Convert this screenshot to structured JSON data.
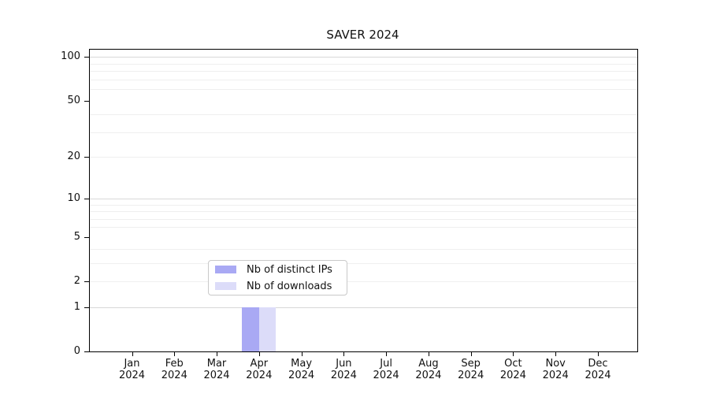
{
  "title": "SAVER 2024",
  "chart_data": {
    "type": "bar",
    "title": "SAVER 2024",
    "x_ticks": [
      {
        "month": "Jan",
        "year": "2024"
      },
      {
        "month": "Feb",
        "year": "2024"
      },
      {
        "month": "Mar",
        "year": "2024"
      },
      {
        "month": "Apr",
        "year": "2024"
      },
      {
        "month": "May",
        "year": "2024"
      },
      {
        "month": "Jun",
        "year": "2024"
      },
      {
        "month": "Jul",
        "year": "2024"
      },
      {
        "month": "Aug",
        "year": "2024"
      },
      {
        "month": "Sep",
        "year": "2024"
      },
      {
        "month": "Oct",
        "year": "2024"
      },
      {
        "month": "Nov",
        "year": "2024"
      },
      {
        "month": "Dec",
        "year": "2024"
      }
    ],
    "series": [
      {
        "name": "Nb of distinct IPs",
        "color": "#a9a9f4",
        "values": [
          0,
          0,
          0,
          1,
          0,
          0,
          0,
          0,
          0,
          0,
          0,
          0
        ]
      },
      {
        "name": "Nb of downloads",
        "color": "#dcdcf9",
        "values": [
          0,
          0,
          0,
          1,
          0,
          0,
          0,
          0,
          0,
          0,
          0,
          0
        ]
      }
    ],
    "xlabel": "",
    "ylabel": "",
    "yscale": "symlog",
    "ylim": [
      0,
      112
    ],
    "yticks": [
      0,
      1,
      2,
      5,
      10,
      20,
      50,
      100
    ],
    "grid_major": [
      1,
      10,
      100
    ],
    "grid_minor": [
      2,
      3,
      4,
      6,
      7,
      8,
      9,
      20,
      30,
      40,
      60,
      70,
      80,
      90
    ],
    "grid": "horizontal",
    "legend_position": "lower center",
    "colors": {
      "axis": "#000000",
      "grid_major": "#d8d8d8",
      "grid_minor": "#efefef",
      "legend_border": "#c9c9c9"
    }
  },
  "legend": {
    "items": [
      {
        "label": "Nb of distinct IPs",
        "color": "#a9a9f4"
      },
      {
        "label": "Nb of downloads",
        "color": "#dcdcf9"
      }
    ]
  }
}
